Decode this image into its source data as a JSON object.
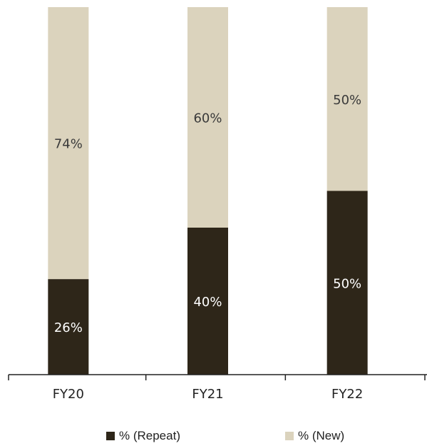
{
  "chart_data": {
    "type": "bar",
    "stacked": true,
    "categories": [
      "FY20",
      "FY21",
      "FY22"
    ],
    "series": [
      {
        "name": "% (Repeat)",
        "values": [
          26,
          40,
          50
        ],
        "color": "#2e2619",
        "label_color": "#ffffff"
      },
      {
        "name": "% (New)",
        "values": [
          74,
          60,
          50
        ],
        "color": "#dbd3bd",
        "label_color": "#3a3a3a"
      }
    ],
    "data_labels": [
      [
        "26%",
        "40%",
        "50%"
      ],
      [
        "74%",
        "60%",
        "50%"
      ]
    ],
    "ylim": [
      0,
      100
    ],
    "grid": false,
    "legend_position": "bottom"
  }
}
